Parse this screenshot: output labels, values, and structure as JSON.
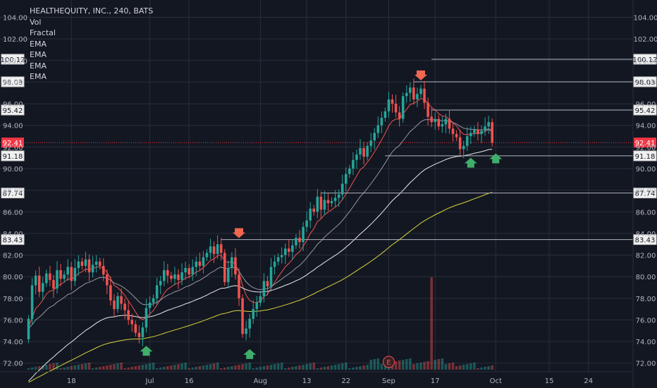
{
  "legend": {
    "title": "HEALTHEQUITY, INC., 240, BATS",
    "indicators": [
      "Vol",
      "Fractal",
      "EMA",
      "EMA",
      "EMA",
      "EMA"
    ]
  },
  "colors": {
    "background": "#131722",
    "grid": "#2a2e39",
    "text": "#b2b5be",
    "up": "#26a69a",
    "down": "#ef5350",
    "ema_fast": "#ef5350",
    "ema_mid": "#9598a1",
    "ema_slow": "#e8eaed",
    "ema_long": "#d4d43a",
    "level_line": "#b2b5be",
    "last_price_bg": "#f23645"
  },
  "chart_data": {
    "type": "candlestick",
    "symbol": "HEALTHEQUITY, INC.",
    "interval": "240",
    "exchange": "BATS",
    "ylim": [
      71.2,
      105.6
    ],
    "y_ticks": [
      72,
      74,
      76,
      78,
      80,
      82,
      84,
      86,
      88,
      90,
      92,
      94,
      96,
      98,
      100,
      102,
      104
    ],
    "x_ticks": [
      {
        "label": "18",
        "bar": 12
      },
      {
        "label": "Jul",
        "bar": 34
      },
      {
        "label": "16",
        "bar": 45
      },
      {
        "label": "Aug",
        "bar": 65
      },
      {
        "label": "13",
        "bar": 78
      },
      {
        "label": "22",
        "bar": 89
      },
      {
        "label": "Sep",
        "bar": 101
      },
      {
        "label": "17",
        "bar": 114
      },
      {
        "label": "Oct",
        "bar": 131
      },
      {
        "label": "15",
        "bar": 146
      },
      {
        "label": "24",
        "bar": 157
      }
    ],
    "total_slots": 170,
    "last_price": 92.41,
    "price_levels": [
      {
        "value": 100.12,
        "from_bar": 113
      },
      {
        "value": 98.03,
        "from_bar": 108
      },
      {
        "value": 95.42,
        "from_bar": 113
      },
      {
        "value": 91.18,
        "from_bar": 100
      },
      {
        "value": 87.74,
        "from_bar": 82
      },
      {
        "value": 83.43,
        "from_bar": 54
      }
    ],
    "earnings_marker": {
      "label": "E",
      "bar": 101
    },
    "down_arrows": [
      {
        "bar": 59,
        "price": 83.7
      },
      {
        "bar": 110,
        "price": 98.3
      }
    ],
    "up_arrows": [
      {
        "bar": 33,
        "price": 73.6
      },
      {
        "bar": 62,
        "price": 73.3
      },
      {
        "bar": 124,
        "price": 91.0
      },
      {
        "bar": 131,
        "price": 91.4
      }
    ],
    "closes": [
      76.1,
      79.2,
      80.1,
      78.6,
      79.4,
      80.3,
      79.7,
      78.9,
      80.6,
      79.8,
      80.2,
      80.9,
      79.6,
      80.8,
      81.4,
      81.0,
      81.6,
      80.4,
      81.1,
      81.4,
      81.0,
      80.2,
      79.2,
      77.8,
      77.0,
      78.2,
      77.5,
      76.9,
      76.0,
      75.6,
      74.8,
      74.4,
      75.3,
      77.1,
      77.6,
      78.0,
      79.2,
      79.6,
      80.6,
      80.1,
      79.8,
      80.2,
      79.7,
      80.4,
      80.8,
      80.2,
      80.9,
      81.4,
      81.0,
      81.8,
      82.2,
      82.8,
      82.1,
      83.0,
      82.2,
      79.5,
      80.8,
      81.8,
      80.2,
      78.0,
      74.7,
      75.2,
      76.1,
      77.0,
      77.6,
      78.2,
      79.6,
      79.1,
      80.9,
      81.4,
      81.8,
      82.0,
      82.6,
      82.3,
      82.9,
      83.6,
      83.2,
      84.6,
      85.2,
      86.3,
      86.0,
      87.4,
      86.2,
      87.1,
      86.8,
      87.0,
      87.3,
      87.6,
      88.6,
      89.5,
      90.0,
      90.8,
      91.3,
      91.9,
      91.1,
      92.1,
      92.6,
      93.3,
      94.0,
      94.7,
      95.3,
      96.4,
      96.0,
      95.2,
      94.6,
      96.7,
      97.0,
      97.5,
      96.4,
      96.9,
      97.4,
      96.1,
      94.8,
      94.3,
      94.6,
      93.9,
      94.1,
      94.6,
      93.7,
      93.2,
      92.9,
      91.8,
      92.1,
      93.0,
      93.3,
      93.6,
      93.2,
      93.5,
      93.9,
      94.3,
      92.4
    ],
    "opens": [
      74.2,
      76.1,
      79.2,
      80.1,
      78.6,
      79.4,
      80.3,
      79.7,
      78.9,
      80.6,
      79.8,
      80.2,
      80.9,
      79.6,
      80.8,
      81.4,
      81.0,
      81.6,
      80.4,
      81.1,
      81.4,
      81.0,
      80.2,
      79.2,
      77.8,
      77.0,
      78.2,
      77.5,
      76.9,
      76.0,
      75.6,
      74.8,
      74.4,
      75.3,
      77.1,
      77.6,
      78.0,
      79.2,
      79.6,
      80.6,
      80.1,
      79.8,
      80.2,
      79.7,
      80.4,
      80.8,
      80.2,
      80.9,
      81.4,
      81.0,
      81.8,
      82.2,
      82.8,
      82.1,
      83.0,
      82.2,
      79.5,
      80.8,
      81.8,
      80.2,
      78.0,
      74.7,
      75.2,
      76.1,
      77.0,
      77.6,
      78.2,
      79.6,
      79.1,
      80.9,
      81.4,
      81.8,
      82.0,
      82.6,
      82.3,
      82.9,
      83.6,
      83.2,
      84.6,
      85.2,
      86.3,
      86.0,
      87.4,
      86.2,
      87.1,
      86.8,
      87.0,
      87.3,
      87.6,
      88.6,
      89.5,
      90.0,
      90.8,
      91.3,
      91.9,
      91.1,
      92.1,
      92.6,
      93.3,
      94.0,
      94.7,
      95.3,
      96.4,
      96.0,
      95.2,
      94.6,
      96.7,
      97.0,
      97.5,
      96.4,
      96.9,
      97.4,
      96.1,
      94.8,
      94.3,
      94.6,
      93.9,
      94.1,
      94.6,
      93.7,
      93.2,
      92.9,
      91.8,
      92.1,
      93.0,
      93.3,
      93.6,
      93.2,
      93.5,
      93.9,
      94.3
    ]
  }
}
